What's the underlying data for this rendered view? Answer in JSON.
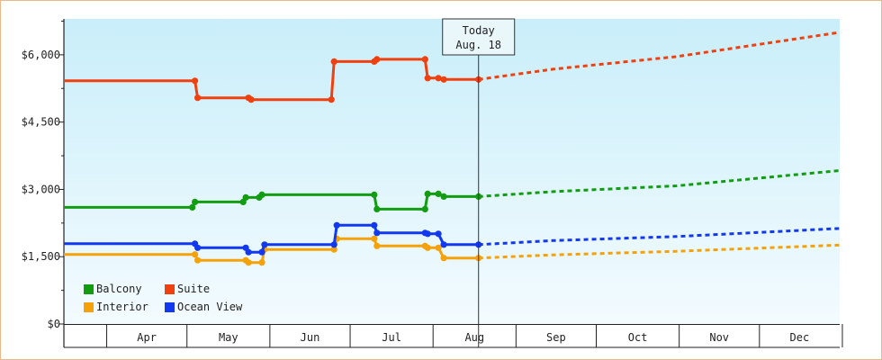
{
  "chart_data": {
    "type": "line",
    "title": "",
    "xlabel": "",
    "ylabel": "",
    "x_axis": {
      "months": [
        "Apr",
        "May",
        "Jun",
        "Jul",
        "Aug",
        "Sep",
        "Oct",
        "Nov",
        "Dec"
      ],
      "range": [
        "2024-03-16",
        "2024-12-31"
      ]
    },
    "y_axis": {
      "ticks": [
        0,
        1500,
        3000,
        4500,
        6000
      ],
      "tick_labels": [
        "$0",
        "$1,500",
        "$3,000",
        "$4,500",
        "$6,000"
      ],
      "ylim": [
        0,
        6800
      ]
    },
    "today_marker": {
      "label": "Today",
      "date_label": "Aug. 18",
      "date": "2024-08-18"
    },
    "background": {
      "gradient_top": "#c9eefa",
      "gradient_bottom": "#f3fbfe"
    },
    "legend": {
      "placement": "bottom-left"
    },
    "series": [
      {
        "name": "Balcony",
        "color": "#129c12",
        "history": [
          [
            "2024-03-16",
            2600
          ],
          [
            "2024-05-03",
            2600
          ],
          [
            "2024-05-04",
            2720
          ],
          [
            "2024-05-22",
            2720
          ],
          [
            "2024-05-23",
            2820
          ],
          [
            "2024-05-28",
            2820
          ],
          [
            "2024-05-29",
            2880
          ],
          [
            "2024-06-25",
            2880
          ],
          [
            "2024-07-10",
            2880
          ],
          [
            "2024-07-11",
            2560
          ],
          [
            "2024-07-29",
            2560
          ],
          [
            "2024-07-30",
            2900
          ],
          [
            "2024-08-03",
            2900
          ],
          [
            "2024-08-05",
            2840
          ],
          [
            "2024-08-18",
            2840
          ]
        ],
        "forecast": [
          [
            "2024-08-18",
            2840
          ],
          [
            "2024-09-15",
            2950
          ],
          [
            "2024-10-31",
            3080
          ],
          [
            "2024-12-31",
            3420
          ]
        ]
      },
      {
        "name": "Suite",
        "color": "#f0400f",
        "history": [
          [
            "2024-03-16",
            5420
          ],
          [
            "2024-05-04",
            5420
          ],
          [
            "2024-05-05",
            5040
          ],
          [
            "2024-05-24",
            5040
          ],
          [
            "2024-05-25",
            5000
          ],
          [
            "2024-06-24",
            5000
          ],
          [
            "2024-06-25",
            5850
          ],
          [
            "2024-07-10",
            5850
          ],
          [
            "2024-07-11",
            5900
          ],
          [
            "2024-07-29",
            5900
          ],
          [
            "2024-07-30",
            5480
          ],
          [
            "2024-08-03",
            5480
          ],
          [
            "2024-08-05",
            5450
          ],
          [
            "2024-08-18",
            5450
          ]
        ],
        "forecast": [
          [
            "2024-08-18",
            5450
          ],
          [
            "2024-09-15",
            5680
          ],
          [
            "2024-10-31",
            5960
          ],
          [
            "2024-12-31",
            6500
          ]
        ]
      },
      {
        "name": "Interior",
        "color": "#f5a20a",
        "history": [
          [
            "2024-03-16",
            1550
          ],
          [
            "2024-05-04",
            1550
          ],
          [
            "2024-05-05",
            1420
          ],
          [
            "2024-05-23",
            1420
          ],
          [
            "2024-05-24",
            1370
          ],
          [
            "2024-05-29",
            1370
          ],
          [
            "2024-05-30",
            1660
          ],
          [
            "2024-06-25",
            1660
          ],
          [
            "2024-06-26",
            1900
          ],
          [
            "2024-07-10",
            1900
          ],
          [
            "2024-07-11",
            1740
          ],
          [
            "2024-07-29",
            1740
          ],
          [
            "2024-07-30",
            1700
          ],
          [
            "2024-08-03",
            1700
          ],
          [
            "2024-08-05",
            1470
          ],
          [
            "2024-08-18",
            1470
          ]
        ],
        "forecast": [
          [
            "2024-08-18",
            1470
          ],
          [
            "2024-09-15",
            1540
          ],
          [
            "2024-10-31",
            1620
          ],
          [
            "2024-12-31",
            1760
          ]
        ]
      },
      {
        "name": "Ocean View",
        "color": "#1238f0",
        "history": [
          [
            "2024-03-16",
            1790
          ],
          [
            "2024-05-04",
            1790
          ],
          [
            "2024-05-05",
            1700
          ],
          [
            "2024-05-23",
            1700
          ],
          [
            "2024-05-24",
            1600
          ],
          [
            "2024-05-29",
            1600
          ],
          [
            "2024-05-30",
            1770
          ],
          [
            "2024-06-25",
            1770
          ],
          [
            "2024-06-26",
            2200
          ],
          [
            "2024-07-10",
            2200
          ],
          [
            "2024-07-11",
            2030
          ],
          [
            "2024-07-29",
            2030
          ],
          [
            "2024-07-30",
            2010
          ],
          [
            "2024-08-03",
            2010
          ],
          [
            "2024-08-05",
            1770
          ],
          [
            "2024-08-18",
            1770
          ]
        ],
        "forecast": [
          [
            "2024-08-18",
            1770
          ],
          [
            "2024-09-15",
            1860
          ],
          [
            "2024-10-31",
            1950
          ],
          [
            "2024-12-31",
            2130
          ]
        ]
      }
    ]
  }
}
